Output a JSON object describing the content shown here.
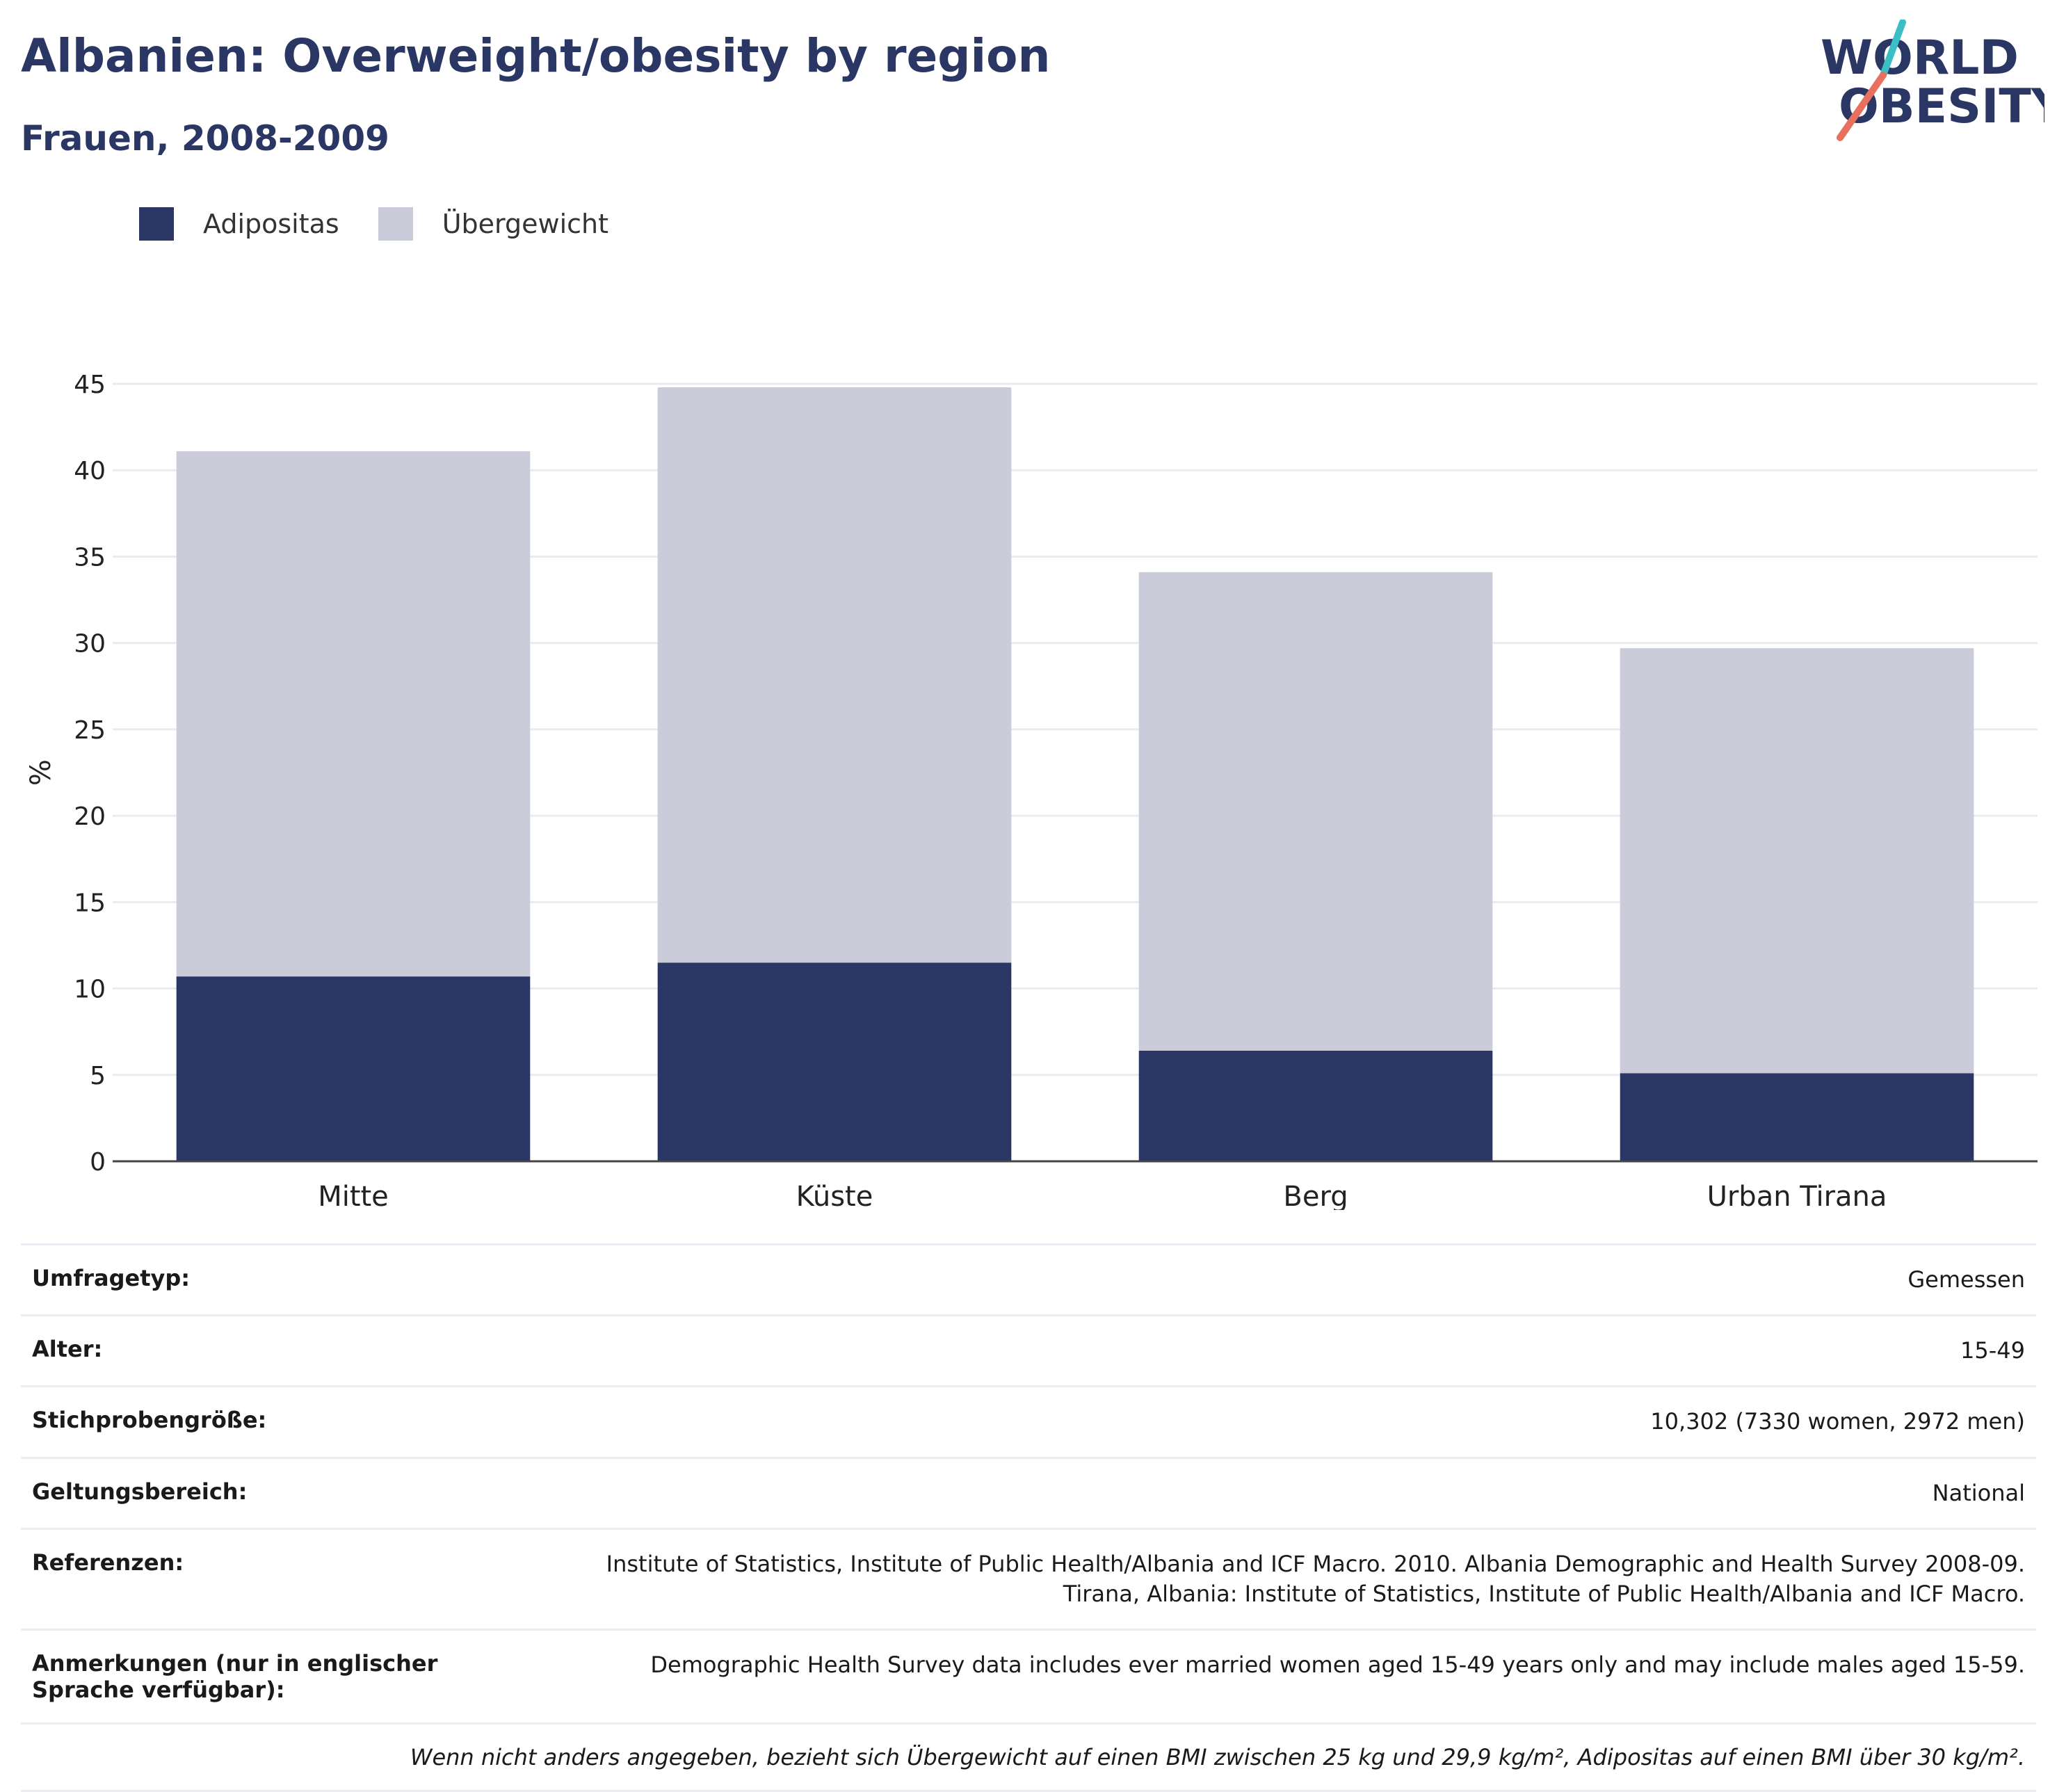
{
  "header": {
    "title": "Albanien: Overweight/obesity by region",
    "subtitle": "Frauen, 2008-2009"
  },
  "logo": {
    "line1": "WORLD",
    "line2": "OBESITY"
  },
  "colors": {
    "obesity": "#2a3663",
    "overweight": "#cacdd9",
    "logo_teal": "#3bbfc4",
    "logo_coral": "#e8705e",
    "text_dark": "#2a3663"
  },
  "chart_data": {
    "type": "bar",
    "stacked": true,
    "categories": [
      "Mitte",
      "Küste",
      "Berg",
      "Urban Tirana"
    ],
    "series": [
      {
        "name": "Adipositas",
        "values": [
          10.7,
          11.5,
          6.4,
          5.1
        ]
      },
      {
        "name": "Übergewicht",
        "values": [
          30.4,
          33.3,
          27.7,
          24.6
        ]
      }
    ],
    "ylabel": "%",
    "ylim": [
      0,
      45
    ],
    "yticks": [
      0,
      5,
      10,
      15,
      20,
      25,
      30,
      35,
      40,
      45
    ],
    "grid": true,
    "legend_position": "top-left"
  },
  "info_table": [
    {
      "key": "Umfragetyp:",
      "value": "Gemessen"
    },
    {
      "key": "Alter:",
      "value": "15-49"
    },
    {
      "key": "Stichprobengröße:",
      "value": "10,302 (7330 women, 2972 men)"
    },
    {
      "key": "Geltungsbereich:",
      "value": "National"
    },
    {
      "key": "Referenzen:",
      "value": "Institute of Statistics, Institute of Public Health/Albania and ICF Macro. 2010. Albania Demographic and Health Survey 2008-09. Tirana, Albania: Institute of Statistics, Institute of Public Health/Albania and ICF Macro."
    },
    {
      "key": "Anmerkungen (nur in englischer Sprache verfügbar):",
      "value": "Demographic Health Survey data includes ever married women aged 15-49 years only and may include males aged 15-59."
    }
  ],
  "footnote": "Wenn nicht anders angegeben, bezieht sich Übergewicht auf einen BMI zwischen 25 kg und 29,9 kg/m², Adipositas auf einen BMI über 30 kg/m²."
}
